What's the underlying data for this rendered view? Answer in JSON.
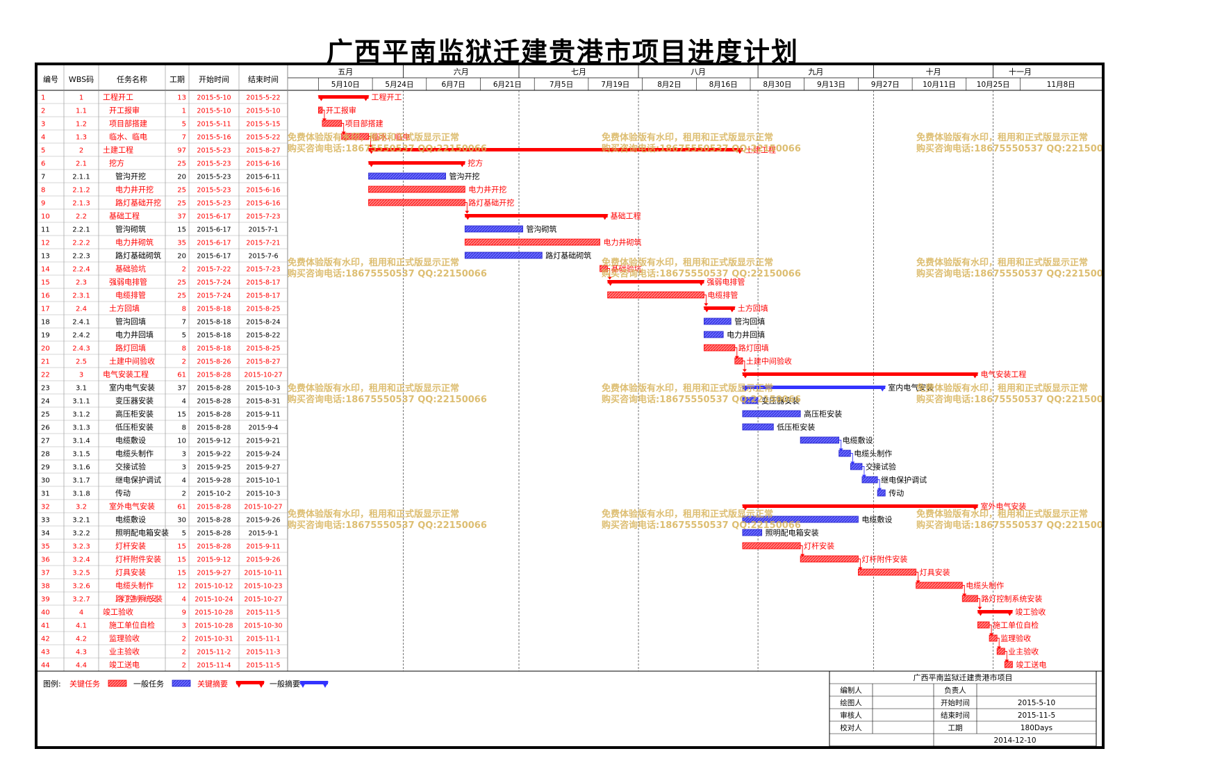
{
  "title": "广西平南监狱迁建贵港市项目进度计划",
  "colors": {
    "critical": "#ff0000",
    "normal": "#3333ff",
    "critical_fill": "#ff8080",
    "normal_fill": "#6a6aff",
    "watermark": "#d8b35a"
  },
  "table": {
    "headers": [
      "编号",
      "WBS码",
      "任务名称",
      "工期",
      "开始时间",
      "结束时间"
    ]
  },
  "watermark": {
    "line1": "免费体验版有水印，租用和正式版显示正常",
    "line2": "购买咨询电话:18675550537 QQ:22150066"
  },
  "legend": {
    "label": "图例:",
    "items": [
      "关键任务",
      "一般任务",
      "关键摘要",
      "一般摘要"
    ]
  },
  "info_box": {
    "project": "广西平南监狱迁建贵港市项目",
    "rows": [
      [
        "编制人",
        "",
        "负责人",
        ""
      ],
      [
        "绘图人",
        "",
        "开始时间",
        "2015-5-10"
      ],
      [
        "审核人",
        "",
        "结束时间",
        "2015-11-5"
      ],
      [
        "校对人",
        "",
        "工期",
        "180Days"
      ]
    ],
    "date": "2014-12-10"
  },
  "chart_data": {
    "type": "gantt",
    "title": "广西平南监狱迁建贵港市项目进度计划",
    "timeline_start": "2015-05-02",
    "months": [
      {
        "label": "五月",
        "start": "2015-05-02",
        "end": "2015-06-01"
      },
      {
        "label": "六月",
        "start": "2015-06-01",
        "end": "2015-07-01"
      },
      {
        "label": "七月",
        "start": "2015-07-01",
        "end": "2015-08-01"
      },
      {
        "label": "八月",
        "start": "2015-08-01",
        "end": "2015-09-01"
      },
      {
        "label": "九月",
        "start": "2015-09-01",
        "end": "2015-10-01"
      },
      {
        "label": "十月",
        "start": "2015-10-01",
        "end": "2015-11-01"
      },
      {
        "label": "十一月",
        "start": "2015-11-01",
        "end": "2015-11-15"
      }
    ],
    "weeks": [
      {
        "label": "5月10日",
        "date": "2015-05-10"
      },
      {
        "label": "5月24日",
        "date": "2015-05-24"
      },
      {
        "label": "6月7日",
        "date": "2015-06-07"
      },
      {
        "label": "6月21日",
        "date": "2015-06-21"
      },
      {
        "label": "7月5日",
        "date": "2015-07-05"
      },
      {
        "label": "7月19日",
        "date": "2015-07-19"
      },
      {
        "label": "8月2日",
        "date": "2015-08-02"
      },
      {
        "label": "8月16日",
        "date": "2015-08-16"
      },
      {
        "label": "8月30日",
        "date": "2015-08-30"
      },
      {
        "label": "9月13日",
        "date": "2015-09-13"
      },
      {
        "label": "9月27日",
        "date": "2015-09-27"
      },
      {
        "label": "10月11日",
        "date": "2015-10-11"
      },
      {
        "label": "10月25日",
        "date": "2015-10-25"
      },
      {
        "label": "11月8日",
        "date": "2015-11-08"
      }
    ],
    "tasks": [
      {
        "id": "1",
        "wbs": "1",
        "name": "工程开工",
        "duration": "13",
        "start": "2015-5-10",
        "end": "2015-5-22",
        "level": 0,
        "summary": true,
        "critical": true
      },
      {
        "id": "2",
        "wbs": "1.1",
        "name": "开工报审",
        "duration": "1",
        "start": "2015-5-10",
        "end": "2015-5-10",
        "level": 1,
        "summary": false,
        "critical": true
      },
      {
        "id": "3",
        "wbs": "1.2",
        "name": "项目部搭建",
        "duration": "5",
        "start": "2015-5-11",
        "end": "2015-5-15",
        "level": 1,
        "summary": false,
        "critical": true
      },
      {
        "id": "4",
        "wbs": "1.3",
        "name": "临水、临电",
        "duration": "7",
        "start": "2015-5-16",
        "end": "2015-5-22",
        "level": 1,
        "summary": false,
        "critical": true
      },
      {
        "id": "5",
        "wbs": "2",
        "name": "土建工程",
        "duration": "97",
        "start": "2015-5-23",
        "end": "2015-8-27",
        "level": 0,
        "summary": true,
        "critical": true
      },
      {
        "id": "6",
        "wbs": "2.1",
        "name": "挖方",
        "duration": "25",
        "start": "2015-5-23",
        "end": "2015-6-16",
        "level": 1,
        "summary": true,
        "critical": true
      },
      {
        "id": "7",
        "wbs": "2.1.1",
        "name": "管沟开挖",
        "duration": "20",
        "start": "2015-5-23",
        "end": "2015-6-11",
        "level": 2,
        "summary": false,
        "critical": false
      },
      {
        "id": "8",
        "wbs": "2.1.2",
        "name": "电力井开挖",
        "duration": "25",
        "start": "2015-5-23",
        "end": "2015-6-16",
        "level": 2,
        "summary": false,
        "critical": true
      },
      {
        "id": "9",
        "wbs": "2.1.3",
        "name": "路灯基础开挖",
        "duration": "25",
        "start": "2015-5-23",
        "end": "2015-6-16",
        "level": 2,
        "summary": false,
        "critical": true
      },
      {
        "id": "10",
        "wbs": "2.2",
        "name": "基础工程",
        "duration": "37",
        "start": "2015-6-17",
        "end": "2015-7-23",
        "level": 1,
        "summary": true,
        "critical": true
      },
      {
        "id": "11",
        "wbs": "2.2.1",
        "name": "管沟砌筑",
        "duration": "15",
        "start": "2015-6-17",
        "end": "2015-7-1",
        "level": 2,
        "summary": false,
        "critical": false
      },
      {
        "id": "12",
        "wbs": "2.2.2",
        "name": "电力井砌筑",
        "duration": "35",
        "start": "2015-6-17",
        "end": "2015-7-21",
        "level": 2,
        "summary": false,
        "critical": true
      },
      {
        "id": "13",
        "wbs": "2.2.3",
        "name": "路灯基础砌筑",
        "duration": "20",
        "start": "2015-6-17",
        "end": "2015-7-6",
        "level": 2,
        "summary": false,
        "critical": false
      },
      {
        "id": "14",
        "wbs": "2.2.4",
        "name": "基础验坑",
        "duration": "2",
        "start": "2015-7-22",
        "end": "2015-7-23",
        "level": 2,
        "summary": false,
        "critical": true
      },
      {
        "id": "15",
        "wbs": "2.3",
        "name": "强弱电排管",
        "duration": "25",
        "start": "2015-7-24",
        "end": "2015-8-17",
        "level": 1,
        "summary": true,
        "critical": true
      },
      {
        "id": "16",
        "wbs": "2.3.1",
        "name": "电缆排管",
        "duration": "25",
        "start": "2015-7-24",
        "end": "2015-8-17",
        "level": 2,
        "summary": false,
        "critical": true
      },
      {
        "id": "17",
        "wbs": "2.4",
        "name": "土方回填",
        "duration": "8",
        "start": "2015-8-18",
        "end": "2015-8-25",
        "level": 1,
        "summary": true,
        "critical": true
      },
      {
        "id": "18",
        "wbs": "2.4.1",
        "name": "管沟回填",
        "duration": "7",
        "start": "2015-8-18",
        "end": "2015-8-24",
        "level": 2,
        "summary": false,
        "critical": false
      },
      {
        "id": "19",
        "wbs": "2.4.2",
        "name": "电力井回填",
        "duration": "5",
        "start": "2015-8-18",
        "end": "2015-8-22",
        "level": 2,
        "summary": false,
        "critical": false
      },
      {
        "id": "20",
        "wbs": "2.4.3",
        "name": "路灯回填",
        "duration": "8",
        "start": "2015-8-18",
        "end": "2015-8-25",
        "level": 2,
        "summary": false,
        "critical": true
      },
      {
        "id": "21",
        "wbs": "2.5",
        "name": "土建中间验收",
        "duration": "2",
        "start": "2015-8-26",
        "end": "2015-8-27",
        "level": 1,
        "summary": false,
        "critical": true
      },
      {
        "id": "22",
        "wbs": "3",
        "name": "电气安装工程",
        "duration": "61",
        "start": "2015-8-28",
        "end": "2015-10-27",
        "level": 0,
        "summary": true,
        "critical": true
      },
      {
        "id": "23",
        "wbs": "3.1",
        "name": "室内电气安装",
        "duration": "37",
        "start": "2015-8-28",
        "end": "2015-10-3",
        "level": 1,
        "summary": true,
        "critical": false
      },
      {
        "id": "24",
        "wbs": "3.1.1",
        "name": "变压器安装",
        "duration": "4",
        "start": "2015-8-28",
        "end": "2015-8-31",
        "level": 2,
        "summary": false,
        "critical": false
      },
      {
        "id": "25",
        "wbs": "3.1.2",
        "name": "高压柜安装",
        "duration": "15",
        "start": "2015-8-28",
        "end": "2015-9-11",
        "level": 2,
        "summary": false,
        "critical": false
      },
      {
        "id": "26",
        "wbs": "3.1.3",
        "name": "低压柜安装",
        "duration": "8",
        "start": "2015-8-28",
        "end": "2015-9-4",
        "level": 2,
        "summary": false,
        "critical": false
      },
      {
        "id": "27",
        "wbs": "3.1.4",
        "name": "电缆敷设",
        "duration": "10",
        "start": "2015-9-12",
        "end": "2015-9-21",
        "level": 2,
        "summary": false,
        "critical": false
      },
      {
        "id": "28",
        "wbs": "3.1.5",
        "name": "电缆头制作",
        "duration": "3",
        "start": "2015-9-22",
        "end": "2015-9-24",
        "level": 2,
        "summary": false,
        "critical": false
      },
      {
        "id": "29",
        "wbs": "3.1.6",
        "name": "交接试验",
        "duration": "3",
        "start": "2015-9-25",
        "end": "2015-9-27",
        "level": 2,
        "summary": false,
        "critical": false
      },
      {
        "id": "30",
        "wbs": "3.1.7",
        "name": "继电保护调试",
        "duration": "4",
        "start": "2015-9-28",
        "end": "2015-10-1",
        "level": 2,
        "summary": false,
        "critical": false
      },
      {
        "id": "31",
        "wbs": "3.1.8",
        "name": "传动",
        "duration": "2",
        "start": "2015-10-2",
        "end": "2015-10-3",
        "level": 2,
        "summary": false,
        "critical": false
      },
      {
        "id": "32",
        "wbs": "3.2",
        "name": "室外电气安装",
        "duration": "61",
        "start": "2015-8-28",
        "end": "2015-10-27",
        "level": 1,
        "summary": true,
        "critical": true
      },
      {
        "id": "33",
        "wbs": "3.2.1",
        "name": "电缆敷设",
        "duration": "30",
        "start": "2015-8-28",
        "end": "2015-9-26",
        "level": 2,
        "summary": false,
        "critical": false
      },
      {
        "id": "34",
        "wbs": "3.2.2",
        "name": "照明配电箱安装",
        "duration": "5",
        "start": "2015-8-28",
        "end": "2015-9-1",
        "level": 2,
        "summary": false,
        "critical": false
      },
      {
        "id": "35",
        "wbs": "3.2.3",
        "name": "灯杆安装",
        "duration": "15",
        "start": "2015-8-28",
        "end": "2015-9-11",
        "level": 2,
        "summary": false,
        "critical": true
      },
      {
        "id": "36",
        "wbs": "3.2.4",
        "name": "灯杆附件安装",
        "duration": "15",
        "start": "2015-9-12",
        "end": "2015-9-26",
        "level": 2,
        "summary": false,
        "critical": true
      },
      {
        "id": "37",
        "wbs": "3.2.5",
        "name": "灯具安装",
        "duration": "15",
        "start": "2015-9-27",
        "end": "2015-10-11",
        "level": 2,
        "summary": false,
        "critical": true
      },
      {
        "id": "38",
        "wbs": "3.2.6",
        "name": "电缆头制作",
        "duration": "12",
        "start": "2015-10-12",
        "end": "2015-10-23",
        "level": 2,
        "summary": false,
        "critical": true
      },
      {
        "id": "39",
        "wbs": "3.2.7",
        "name": "路灯控制系统安装",
        "duration": "4",
        "start": "2015-10-24",
        "end": "2015-10-27",
        "level": 2,
        "summary": false,
        "critical": true
      },
      {
        "id": "40",
        "wbs": "4",
        "name": "竣工验收",
        "duration": "9",
        "start": "2015-10-28",
        "end": "2015-11-5",
        "level": 0,
        "summary": true,
        "critical": true
      },
      {
        "id": "41",
        "wbs": "4.1",
        "name": "施工单位自检",
        "duration": "3",
        "start": "2015-10-28",
        "end": "2015-10-30",
        "level": 1,
        "summary": false,
        "critical": true
      },
      {
        "id": "42",
        "wbs": "4.2",
        "name": "监理验收",
        "duration": "2",
        "start": "2015-10-31",
        "end": "2015-11-1",
        "level": 1,
        "summary": false,
        "critical": true
      },
      {
        "id": "43",
        "wbs": "4.3",
        "name": "业主验收",
        "duration": "2",
        "start": "2015-11-2",
        "end": "2015-11-3",
        "level": 1,
        "summary": false,
        "critical": true
      },
      {
        "id": "44",
        "wbs": "4.4",
        "name": "竣工送电",
        "duration": "2",
        "start": "2015-11-4",
        "end": "2015-11-5",
        "level": 1,
        "summary": false,
        "critical": true
      }
    ]
  }
}
